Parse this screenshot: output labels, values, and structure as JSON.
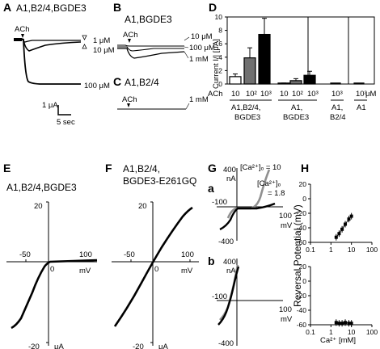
{
  "panels": {
    "A": {
      "letter": "A",
      "title": "A1,B2/4,BGDE3",
      "ach": "ACh",
      "conc": [
        "1 μM",
        "10 μM",
        "100 μM"
      ],
      "scale_y": "1 μA",
      "scale_x": "5 sec"
    },
    "B": {
      "letter": "B",
      "title": "A1,BGDE3",
      "ach": "ACh",
      "conc": [
        "10 μM",
        "100 μM",
        "1 mM"
      ]
    },
    "C": {
      "letter": "C",
      "title": "A1,B2/4",
      "ach": "ACh",
      "conc": "1 mM"
    },
    "D": {
      "letter": "D",
      "ylabel": "Current I/| [μA]",
      "ticks": [
        "0",
        "2",
        "4",
        "6",
        "8",
        "10"
      ],
      "ach_label": "ACh",
      "groups": [
        {
          "name": "A1,B2/4, BGDE3",
          "line1": "A1,B2/4,",
          "line2": "BGDE3",
          "xticks": [
            "10",
            "10²",
            "10³"
          ]
        },
        {
          "name": "A1, BGDE3",
          "line1": "A1,",
          "line2": "BGDE3",
          "xticks": [
            "10",
            "10²",
            "10³"
          ]
        },
        {
          "name": "A1, B2/4",
          "line1": "A1,",
          "line2": "B2/4",
          "xticks": [
            "10³"
          ]
        },
        {
          "name": "A1",
          "line1": "A1",
          "line2": "",
          "xticks": [
            "10³"
          ]
        }
      ],
      "unit": "μM"
    },
    "E": {
      "letter": "E",
      "title": "A1,B2/4,BGDE3",
      "ytop": "20",
      "ybot": "-20",
      "yunit": "μA",
      "xneg": "-50",
      "xzero": "0",
      "xpos": "100",
      "xunit": "mV"
    },
    "F": {
      "letter": "F",
      "title1": "A1,B2/4,",
      "title2": "BGDE3-E261GQ",
      "ytop": "20",
      "ybot": "-20",
      "yunit": "μA",
      "xneg": "-50",
      "xzero": "0",
      "xpos": "100",
      "xunit": "mV"
    },
    "G": {
      "letter": "G",
      "a": "a",
      "b": "b",
      "ytop": "400",
      "yunit": "nA",
      "ybot": "-400",
      "xneg": "-100",
      "xpos": "100",
      "xunit": "mV",
      "ca_high": "[Ca²⁺]ₒ = 10",
      "ca_low1": "[Ca²⁺]ₒ",
      "ca_low2": "= 1.8"
    },
    "H": {
      "letter": "H",
      "ylabel": "Reversal Potential (mV)",
      "xlabel": "Ca²⁺ [mM]",
      "top_yticks": [
        "20",
        "0",
        "-20",
        "-40",
        "-60"
      ],
      "bot_yticks": [
        "20",
        "0",
        "-20",
        "-40",
        "-60"
      ],
      "xticks": [
        "0.1",
        "1",
        "10",
        "100"
      ]
    }
  },
  "chart_data": [
    {
      "type": "bar",
      "title": "",
      "xlabel": "ACh (μM)",
      "ylabel": "Current I/| [μA]",
      "ylim": [
        0,
        10
      ],
      "groups": [
        {
          "name": "A1,B2/4, BGDE3",
          "categories": [
            "10",
            "10²",
            "10³"
          ],
          "values": [
            1.1,
            3.9,
            7.4
          ],
          "errors": [
            0.4,
            1.5,
            2.4
          ],
          "colors": [
            "#ffffff",
            "#707070",
            "#000000"
          ]
        },
        {
          "name": "A1, BGDE3",
          "categories": [
            "10",
            "10²",
            "10³"
          ],
          "values": [
            0.1,
            0.5,
            1.3
          ],
          "errors": [
            0.05,
            0.3,
            0.6
          ],
          "colors": [
            "#ffffff",
            "#707070",
            "#000000"
          ]
        },
        {
          "name": "A1, B2/4",
          "categories": [
            "10³"
          ],
          "values": [
            0.05
          ],
          "errors": [
            0.05
          ],
          "colors": [
            "#000000"
          ]
        },
        {
          "name": "A1",
          "categories": [
            "10³"
          ],
          "values": [
            0.05
          ],
          "errors": [
            0.05
          ],
          "colors": [
            "#000000"
          ]
        }
      ]
    },
    {
      "type": "scatter",
      "xlabel": "Ca²⁺ [mM]",
      "ylabel": "Reversal Potential (mV)",
      "xscale": "log",
      "xlim": [
        0.1,
        100
      ],
      "ylim": [
        -60,
        20
      ],
      "points": [
        [
          1.8,
          -53
        ],
        [
          2.5,
          -48
        ],
        [
          3.5,
          -42
        ],
        [
          5,
          -35
        ],
        [
          7.5,
          -28
        ],
        [
          10,
          -24
        ]
      ]
    },
    {
      "type": "scatter",
      "xlabel": "Ca²⁺ [mM]",
      "ylabel": "Reversal Potential (mV)",
      "xscale": "log",
      "xlim": [
        0.1,
        100
      ],
      "ylim": [
        -60,
        20
      ],
      "points": [
        [
          1.8,
          -57
        ],
        [
          2.5,
          -58
        ],
        [
          3.5,
          -58
        ],
        [
          5,
          -57
        ],
        [
          7.5,
          -58
        ],
        [
          10,
          -58
        ]
      ]
    }
  ]
}
